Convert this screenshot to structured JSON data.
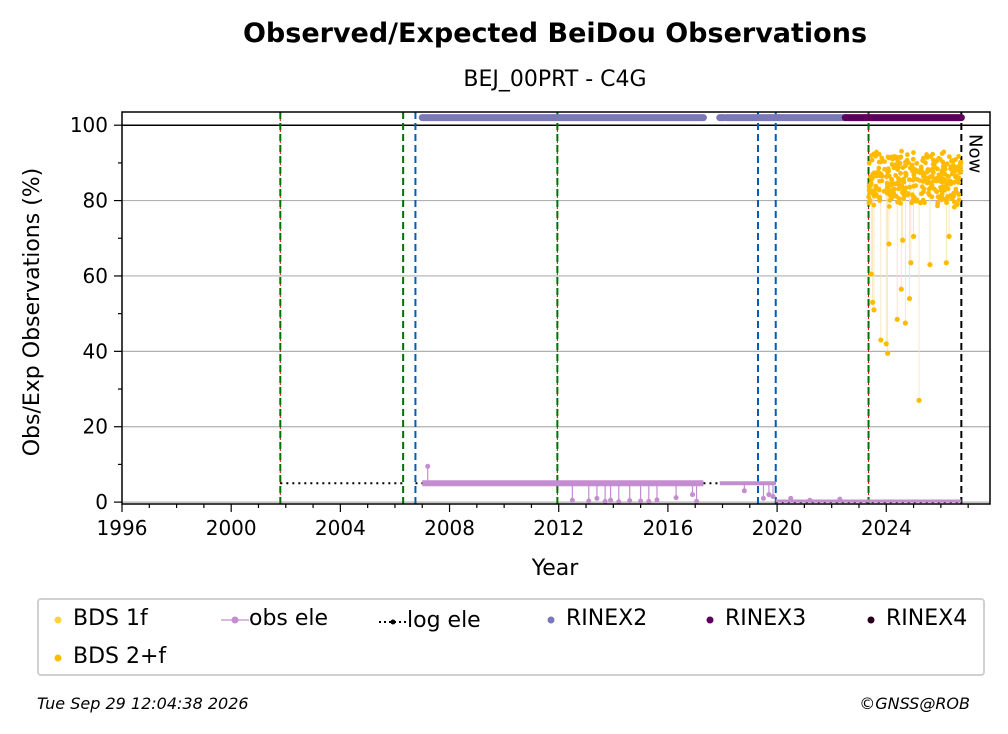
{
  "chart_data": {
    "type": "scatter",
    "title": "Observed/Expected BeiDou Observations",
    "subtitle": "BEJ_00PRT - C4G",
    "xlabel": "Year",
    "ylabel": "Obs/Exp Observations (%)",
    "xlim": [
      1996,
      2027.8
    ],
    "ylim": [
      -0.5,
      103.5
    ],
    "xticks": [
      1996,
      2000,
      2004,
      2008,
      2012,
      2016,
      2020,
      2024
    ],
    "yticks": [
      0,
      20,
      40,
      60,
      80,
      100
    ],
    "grid": "horizontal",
    "now_label": "Now",
    "now_x": 2026.75,
    "reference_line_y": 100,
    "vlines": [
      {
        "x": 2001.8,
        "color": "#007000",
        "style": "dashed-red"
      },
      {
        "x": 2006.3,
        "color": "#007000",
        "style": "dashed"
      },
      {
        "x": 2006.75,
        "color": "#005db4",
        "style": "dashed"
      },
      {
        "x": 2011.95,
        "color": "#007000",
        "style": "dashed-red"
      },
      {
        "x": 2019.3,
        "color": "#005db4",
        "style": "dashed"
      },
      {
        "x": 2019.95,
        "color": "#005db4",
        "style": "dashed"
      },
      {
        "x": 2023.35,
        "color": "#007000",
        "style": "dashed-red"
      },
      {
        "x": 2026.75,
        "color": "#000000",
        "style": "dashed"
      }
    ],
    "log_ele": [
      {
        "x": [
          2001.8,
          2006.3
        ],
        "y": 5
      },
      {
        "x": [
          2006.75,
          2019.95
        ],
        "y": 5
      },
      {
        "x": [
          2019.95,
          2026.75
        ],
        "y": 0
      }
    ],
    "rinex2_segments": [
      [
        2007.0,
        2017.3
      ],
      [
        2017.9,
        2018.05
      ],
      [
        2018.15,
        2022.5
      ]
    ],
    "rinex3_segments": [
      [
        2022.5,
        2026.75
      ]
    ],
    "rinex_band_y": 102,
    "obs_ele": {
      "band_y": 5,
      "band_x": [
        2007.0,
        2017.3
      ],
      "band2_x": [
        2017.9,
        2019.95
      ],
      "band2_y": 5,
      "band3_x": [
        2019.95,
        2026.75
      ],
      "band3_y": 0.3,
      "spikes": [
        [
          2007.2,
          9.5
        ],
        [
          2012.5,
          0.5
        ],
        [
          2013.1,
          0.3
        ],
        [
          2013.4,
          1.0
        ],
        [
          2013.7,
          0.2
        ],
        [
          2013.9,
          0.5
        ],
        [
          2014.2,
          0.1
        ],
        [
          2014.6,
          0.4
        ],
        [
          2015.0,
          0.3
        ],
        [
          2015.3,
          0.2
        ],
        [
          2015.6,
          0.6
        ],
        [
          2016.3,
          1.2
        ],
        [
          2016.9,
          2.0
        ],
        [
          2017.05,
          0.2
        ],
        [
          2018.8,
          3.0
        ],
        [
          2019.5,
          1.0
        ],
        [
          2019.7,
          2.0
        ],
        [
          2019.85,
          1.5
        ],
        [
          2020.5,
          1.0
        ],
        [
          2021.2,
          0.5
        ],
        [
          2022.3,
          0.8
        ]
      ]
    },
    "bds_2f": {
      "x_range": [
        2023.35,
        2026.75
      ],
      "y_band": [
        79,
        94
      ],
      "outliers": [
        [
          2023.4,
          80
        ],
        [
          2023.45,
          60.5
        ],
        [
          2023.5,
          53
        ],
        [
          2023.55,
          51
        ],
        [
          2023.8,
          43
        ],
        [
          2024.0,
          42
        ],
        [
          2024.05,
          39.5
        ],
        [
          2024.1,
          68.5
        ],
        [
          2024.4,
          48.5
        ],
        [
          2024.55,
          56.5
        ],
        [
          2024.6,
          69.5
        ],
        [
          2024.7,
          47.5
        ],
        [
          2024.85,
          54
        ],
        [
          2024.9,
          63.5
        ],
        [
          2025.0,
          70.5
        ],
        [
          2025.2,
          27
        ],
        [
          2025.6,
          63
        ],
        [
          2026.2,
          63.5
        ],
        [
          2026.3,
          70.5
        ],
        [
          2026.6,
          79
        ]
      ]
    },
    "legend": [
      {
        "label": "BDS 1f",
        "color": "#fed340",
        "marker": "dot"
      },
      {
        "label": "BDS 2+f",
        "color": "#ffbb00",
        "marker": "dot"
      },
      {
        "label": "obs ele",
        "color": "#c38dcf",
        "marker": "line-dot"
      },
      {
        "label": "log ele",
        "color": "#000000",
        "marker": "dotted-line-dot"
      },
      {
        "label": "RINEX2",
        "color": "#7b78ba",
        "marker": "dot"
      },
      {
        "label": "RINEX3",
        "color": "#5e005e",
        "marker": "dot"
      },
      {
        "label": "RINEX4",
        "color": "#27001b",
        "marker": "dot"
      }
    ],
    "legend_placement": "bottom"
  },
  "footer": {
    "timestamp": "Tue Sep 29 12:04:38 2026",
    "credit": "©GNSS@ROB"
  }
}
